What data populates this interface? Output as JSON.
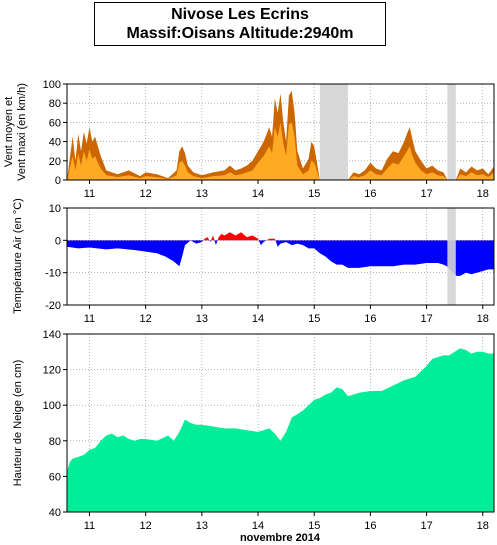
{
  "title": {
    "line1": "Nivose Les Ecrins",
    "line2": "Massif:Oisans Altitude:2940m"
  },
  "xlabel": "novembre 2014",
  "colors": {
    "wind_max": "#cc6600",
    "wind_mean": "#ffaa22",
    "temp_pos": "#ff0000",
    "temp_neg": "#0000ff",
    "snow": "#00ee99",
    "gap": "#d4d4d4",
    "grid": "#888888"
  },
  "chart_data": [
    {
      "type": "area",
      "name": "wind",
      "ylabel_line1": "Vent moyen et",
      "ylabel_line2": "Vent maxi (en km/h)",
      "xlim": [
        10.6,
        18.2
      ],
      "ylim": [
        0,
        100
      ],
      "yticks": [
        0,
        20,
        40,
        60,
        80,
        100
      ],
      "xticks": [
        11,
        12,
        13,
        14,
        15,
        16,
        17,
        18
      ],
      "grid": true,
      "missing": [
        [
          15.1,
          15.6
        ],
        [
          17.37,
          17.52
        ]
      ],
      "series": [
        {
          "role": "max",
          "x": [
            10.6,
            10.7,
            10.75,
            10.8,
            10.85,
            10.9,
            10.95,
            11.0,
            11.05,
            11.1,
            11.15,
            11.2,
            11.3,
            11.4,
            11.5,
            11.7,
            11.9,
            12.0,
            12.2,
            12.4,
            12.55,
            12.6,
            12.65,
            12.7,
            12.75,
            12.85,
            13.0,
            13.2,
            13.4,
            13.5,
            13.6,
            13.7,
            13.8,
            13.9,
            14.0,
            14.1,
            14.2,
            14.25,
            14.3,
            14.35,
            14.4,
            14.45,
            14.5,
            14.55,
            14.6,
            14.65,
            14.7,
            14.8,
            14.9,
            14.95,
            15.0,
            15.1,
            15.6,
            15.7,
            15.8,
            15.9,
            16.0,
            16.1,
            16.2,
            16.3,
            16.4,
            16.5,
            16.6,
            16.65,
            16.7,
            16.75,
            16.8,
            16.9,
            17.0,
            17.1,
            17.2,
            17.3,
            17.37,
            17.52,
            17.6,
            17.7,
            17.8,
            17.9,
            18.0,
            18.1,
            18.2
          ],
          "values": [
            0,
            45,
            20,
            48,
            30,
            50,
            38,
            55,
            40,
            45,
            35,
            25,
            10,
            8,
            6,
            10,
            4,
            8,
            6,
            2,
            10,
            30,
            35,
            28,
            15,
            8,
            5,
            8,
            10,
            15,
            10,
            12,
            15,
            20,
            30,
            40,
            55,
            45,
            85,
            70,
            90,
            60,
            40,
            88,
            93,
            70,
            30,
            12,
            22,
            40,
            35,
            0,
            0,
            8,
            6,
            10,
            18,
            12,
            10,
            22,
            30,
            28,
            40,
            48,
            55,
            42,
            30,
            20,
            12,
            15,
            10,
            8,
            0,
            0,
            12,
            8,
            14,
            10,
            12,
            6,
            14
          ]
        },
        {
          "role": "mean",
          "x": [
            10.6,
            10.7,
            10.75,
            10.8,
            10.85,
            10.9,
            10.95,
            11.0,
            11.05,
            11.1,
            11.15,
            11.2,
            11.3,
            11.4,
            11.5,
            11.7,
            11.9,
            12.0,
            12.2,
            12.4,
            12.55,
            12.6,
            12.65,
            12.7,
            12.75,
            12.85,
            13.0,
            13.2,
            13.4,
            13.5,
            13.6,
            13.7,
            13.8,
            13.9,
            14.0,
            14.1,
            14.2,
            14.25,
            14.3,
            14.35,
            14.4,
            14.45,
            14.5,
            14.55,
            14.6,
            14.65,
            14.7,
            14.8,
            14.9,
            14.95,
            15.0,
            15.1,
            15.6,
            15.7,
            15.8,
            15.9,
            16.0,
            16.1,
            16.2,
            16.3,
            16.4,
            16.5,
            16.6,
            16.65,
            16.7,
            16.75,
            16.8,
            16.9,
            17.0,
            17.1,
            17.2,
            17.3,
            17.37,
            17.52,
            17.6,
            17.7,
            17.8,
            17.9,
            18.0,
            18.1,
            18.2
          ],
          "values": [
            0,
            25,
            10,
            28,
            15,
            30,
            20,
            32,
            22,
            25,
            18,
            12,
            5,
            4,
            3,
            5,
            2,
            4,
            3,
            1,
            5,
            18,
            20,
            15,
            8,
            4,
            2,
            4,
            5,
            8,
            5,
            6,
            8,
            10,
            18,
            25,
            35,
            28,
            55,
            45,
            60,
            38,
            25,
            58,
            60,
            45,
            15,
            6,
            10,
            20,
            18,
            0,
            0,
            4,
            3,
            5,
            10,
            6,
            5,
            12,
            18,
            16,
            25,
            30,
            35,
            25,
            18,
            10,
            6,
            8,
            5,
            4,
            0,
            0,
            6,
            4,
            8,
            5,
            6,
            3,
            8
          ]
        }
      ]
    },
    {
      "type": "area",
      "name": "temperature",
      "ylabel": "Température Air (en °C)",
      "xlim": [
        10.6,
        18.2
      ],
      "ylim": [
        -20,
        10
      ],
      "yticks": [
        -20,
        -10,
        0,
        10
      ],
      "xticks": [
        11,
        12,
        13,
        14,
        15,
        16,
        17,
        18
      ],
      "grid": true,
      "missing": [
        [
          17.37,
          17.52
        ]
      ],
      "x": [
        10.6,
        10.8,
        11.0,
        11.3,
        11.5,
        11.8,
        12.0,
        12.2,
        12.35,
        12.5,
        12.6,
        12.65,
        12.7,
        12.8,
        12.9,
        13.0,
        13.05,
        13.1,
        13.15,
        13.2,
        13.25,
        13.3,
        13.35,
        13.4,
        13.5,
        13.6,
        13.7,
        13.8,
        13.9,
        14.0,
        14.05,
        14.1,
        14.2,
        14.3,
        14.35,
        14.4,
        14.5,
        14.6,
        14.7,
        14.8,
        14.9,
        15.0,
        15.1,
        15.2,
        15.3,
        15.4,
        15.5,
        15.6,
        15.8,
        16.0,
        16.2,
        16.4,
        16.6,
        16.8,
        17.0,
        17.2,
        17.3,
        17.36,
        17.53,
        17.6,
        17.7,
        17.8,
        17.9,
        18.0,
        18.1,
        18.2
      ],
      "values": [
        -2,
        -2.5,
        -2.2,
        -2.8,
        -2.5,
        -3,
        -3.5,
        -4,
        -5,
        -6.5,
        -8,
        -5,
        -1.5,
        0,
        -1,
        -0.5,
        0.5,
        1,
        -0.5,
        1.5,
        -1.5,
        1,
        2,
        1.5,
        2.5,
        1.5,
        2.5,
        1,
        1.5,
        0.5,
        -1.5,
        -0.5,
        0.5,
        0.5,
        -2,
        -1,
        -0.5,
        -1.5,
        -1,
        -1.5,
        -2.5,
        -2.5,
        -4,
        -5,
        -6.5,
        -7.5,
        -7.5,
        -8.5,
        -8.5,
        -8,
        -8,
        -8,
        -7.5,
        -7.5,
        -7,
        -7,
        -7.5,
        -8,
        -11,
        -11,
        -10,
        -10.5,
        -10,
        -9.5,
        -9,
        -9
      ]
    },
    {
      "type": "area",
      "name": "snow",
      "ylabel": "Hauteur de Neige (en cm)",
      "xlim": [
        10.6,
        18.2
      ],
      "ylim": [
        40,
        140
      ],
      "yticks": [
        40,
        60,
        80,
        100,
        120,
        140
      ],
      "xticks": [
        11,
        12,
        13,
        14,
        15,
        16,
        17,
        18
      ],
      "grid": true,
      "x": [
        10.6,
        10.65,
        10.7,
        10.8,
        10.9,
        11.0,
        11.1,
        11.2,
        11.3,
        11.4,
        11.5,
        11.6,
        11.7,
        11.8,
        11.9,
        12.0,
        12.2,
        12.4,
        12.5,
        12.6,
        12.7,
        12.8,
        12.9,
        13.0,
        13.2,
        13.4,
        13.6,
        13.8,
        14.0,
        14.1,
        14.2,
        14.3,
        14.4,
        14.5,
        14.6,
        14.7,
        14.8,
        14.9,
        15.0,
        15.1,
        15.2,
        15.3,
        15.4,
        15.5,
        15.6,
        15.8,
        16.0,
        16.2,
        16.4,
        16.6,
        16.8,
        17.0,
        17.1,
        17.2,
        17.3,
        17.4,
        17.5,
        17.6,
        17.7,
        17.8,
        17.9,
        18.0,
        18.1,
        18.2
      ],
      "values": [
        63,
        68,
        70,
        71,
        72,
        75,
        76,
        80,
        83,
        84,
        82,
        83,
        81,
        80,
        81,
        81,
        80,
        83,
        80,
        85,
        92,
        90,
        89,
        89,
        88,
        87,
        87,
        86,
        85,
        86,
        87,
        84,
        80,
        85,
        93,
        95,
        97,
        100,
        103,
        104,
        106,
        107,
        110,
        109,
        105,
        107,
        108,
        108,
        111,
        114,
        116,
        122,
        126,
        127,
        128,
        128,
        130,
        132,
        131,
        129,
        130,
        130,
        129,
        129
      ]
    }
  ]
}
